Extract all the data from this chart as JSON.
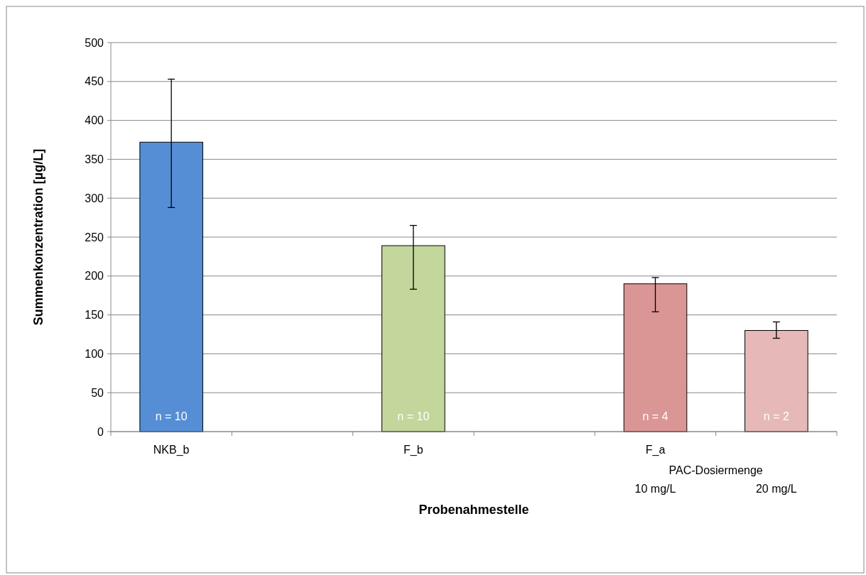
{
  "chart_data": {
    "type": "bar",
    "xlabel": "Probenahmestelle",
    "ylabel": "Summenkonzentration [µg/L]",
    "categories": [
      "NKB_b",
      null,
      "F_b",
      null,
      "F_a",
      null
    ],
    "values": [
      372,
      null,
      239,
      null,
      190,
      130
    ],
    "colors": [
      "#558ed5",
      null,
      "#c3d69b",
      null,
      "#d99694",
      "#e6b9b8"
    ],
    "errors": [
      [
        288,
        453
      ],
      null,
      [
        183,
        265
      ],
      null,
      [
        154,
        198
      ],
      [
        120,
        141
      ]
    ],
    "annotations": [
      "n = 10",
      "n = 10",
      "n = 4",
      "n = 2",
      "PAC-Dosiermenge",
      "10 mg/L",
      "20 mg/L"
    ],
    "ylim": [
      0,
      500
    ],
    "yticks": [
      0,
      50,
      100,
      150,
      200,
      250,
      300,
      350,
      400,
      450,
      500
    ],
    "grid": "y"
  }
}
